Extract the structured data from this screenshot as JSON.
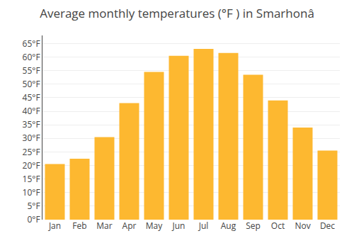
{
  "chart_data": {
    "type": "bar",
    "title": "Average monthly temperatures (°F ) in Smarhonâ",
    "categories": [
      "Jan",
      "Feb",
      "Mar",
      "Apr",
      "May",
      "Jun",
      "Jul",
      "Aug",
      "Sep",
      "Oct",
      "Nov",
      "Dec"
    ],
    "values": [
      20.5,
      22.5,
      30.5,
      43.0,
      54.5,
      60.5,
      63.0,
      61.5,
      53.5,
      44.0,
      34.0,
      25.5
    ],
    "color": "#FDB830",
    "ylim": [
      0,
      68
    ],
    "yticks": [
      {
        "value": 0,
        "label": "0°F"
      },
      {
        "value": 5,
        "label": "5°F"
      },
      {
        "value": 10,
        "label": "10°F"
      },
      {
        "value": 15,
        "label": "15°F"
      },
      {
        "value": 20,
        "label": "20°F"
      },
      {
        "value": 25,
        "label": "25°F"
      },
      {
        "value": 30,
        "label": "30°F"
      },
      {
        "value": 35,
        "label": "35°F"
      },
      {
        "value": 40,
        "label": "40°F"
      },
      {
        "value": 45,
        "label": "45°F"
      },
      {
        "value": 50,
        "label": "50°F"
      },
      {
        "value": 55,
        "label": "55°F"
      },
      {
        "value": 60,
        "label": "60°F"
      },
      {
        "value": 65,
        "label": "65°F"
      }
    ],
    "grid": true
  }
}
